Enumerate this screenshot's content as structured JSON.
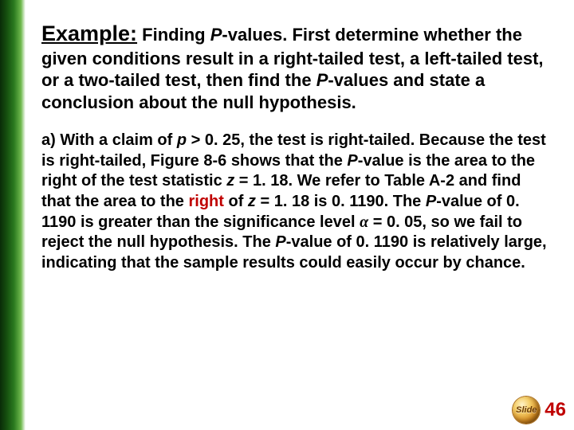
{
  "side_border": {
    "gradient_colors": [
      "#0a2b08",
      "#144d0e",
      "#2b7a1f",
      "#6db84c",
      "#ffffff"
    ]
  },
  "heading": {
    "example_label": "Example:",
    "rest_line1a": " Finding ",
    "rest_line1_ital": "P",
    "rest_line1b": "-values. First determine whether the given conditions result in a right-tailed test, a left-tailed test, or a two-tailed test, then find the ",
    "rest_line1_ital2": "P",
    "rest_line1c": "-values and state a conclusion about the null hypothesis."
  },
  "body": {
    "seg1": "a)  With a claim of ",
    "ital1": "p",
    "seg2": " > 0. 25, the test is right-tailed. Because the test is right-tailed, Figure 8-6 shows that the ",
    "ital2": "P",
    "seg3": "-value is the area to the right of the test statistic ",
    "ital3": "z",
    "seg4": " = 1. 18.  We refer to Table A-2 and find that the area to the ",
    "right_word": "right",
    "seg5": " of ",
    "ital4": "z",
    "seg6": " = 1. 18 is 0. 1190. The ",
    "ital5": "P",
    "seg7": "-value of 0. 1190 is greater than the significance level ",
    "alpha": "α",
    "seg8": " = 0. 05, so we fail to reject the null hypothesis.  The ",
    "ital6": "P",
    "seg9": "-value of 0. 1190 is relatively large, indicating that the sample results could easily occur by chance."
  },
  "footer": {
    "globe_label": "Slide",
    "page_number": "46",
    "page_number_color": "#c00000"
  }
}
